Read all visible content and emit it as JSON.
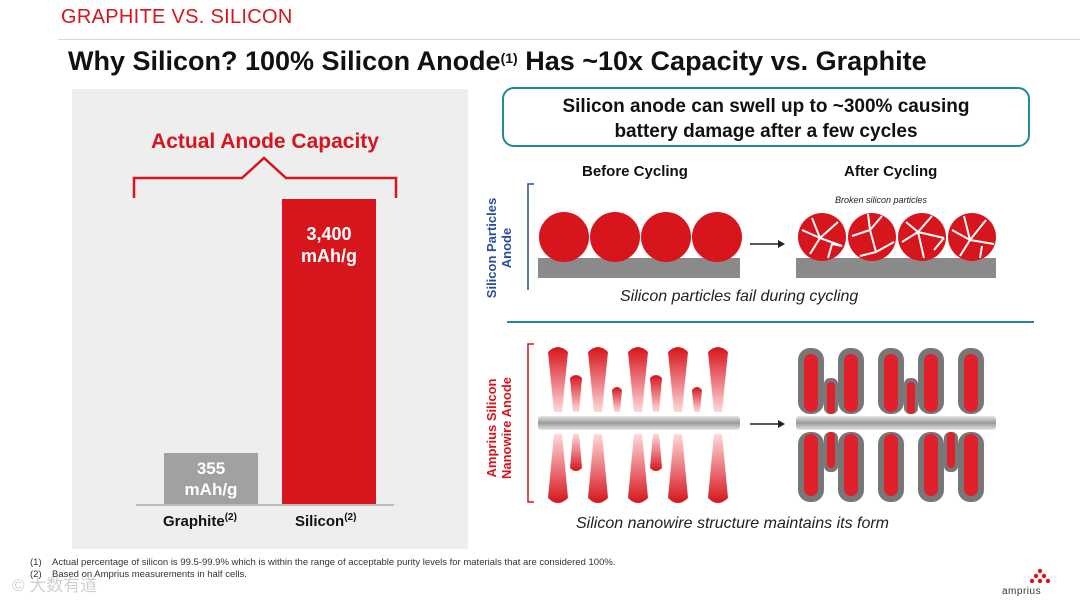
{
  "header": {
    "kicker": "GRAPHITE VS. SILICON",
    "title_main": "Why Silicon? 100% Silicon Anode",
    "title_sup": "(1)",
    "title_end": " Has ~10x Capacity vs. Graphite"
  },
  "left_panel": {
    "heading": "Actual Anode Capacity",
    "bars": [
      {
        "name": "Graphite",
        "sup": "(2)",
        "value_line1": "355",
        "value_line2": "mAh/g",
        "color": "#a1a1a1"
      },
      {
        "name": "Silicon",
        "sup": "(2)",
        "value_line1": "3,400",
        "value_line2": "mAh/g",
        "color": "#d6151d"
      }
    ]
  },
  "right_panel": {
    "callout_line1": "Silicon anode can swell up to ~300% causing",
    "callout_line2": "battery damage after a few cycles",
    "col_before": "Before Cycling",
    "col_after": "After Cycling",
    "broken_note": "Broken silicon particles",
    "particles_label_line1": "Silicon Particles",
    "particles_label_line2": "Anode",
    "particles_caption": "Silicon particles fail during cycling",
    "nanowire_label_line1": "Amprius Silicon",
    "nanowire_label_line2": "Nanowire Anode",
    "nanowire_caption": "Silicon nanowire structure maintains its form",
    "accent_color": "#1f8a94"
  },
  "footnotes": [
    {
      "num": "(1)",
      "text": "Actual percentage of silicon is 99.5-99.9% which is within the range of acceptable purity levels for materials that are considered 100%."
    },
    {
      "num": "(2)",
      "text": "Based on Amprius measurements in half cells."
    }
  ],
  "logo": {
    "text": "amprius"
  },
  "watermark": {
    "text": "© 大数有道"
  }
}
